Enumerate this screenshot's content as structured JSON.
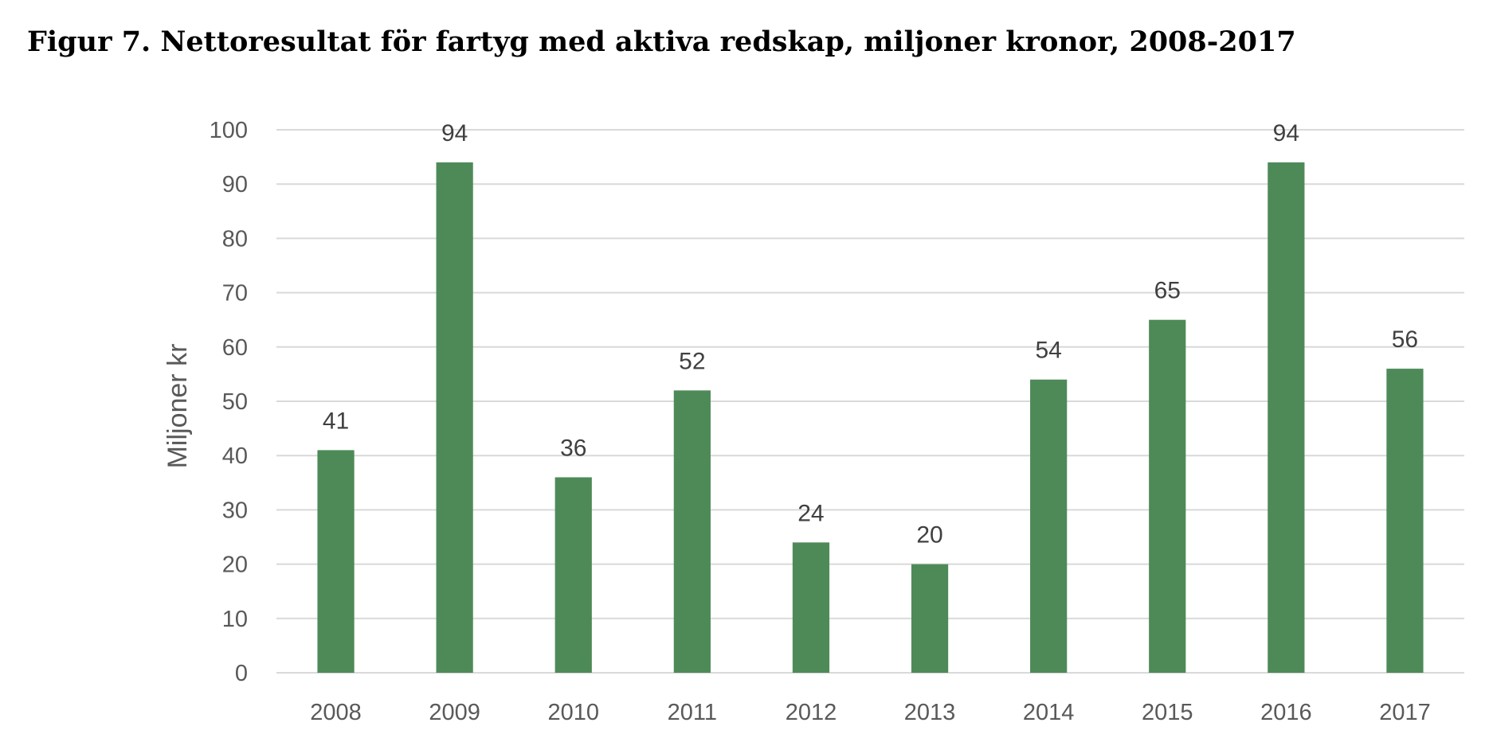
{
  "figure": {
    "title": "Figur 7. Nettoresultat för fartyg med aktiva redskap, miljoner kronor, 2008-2017"
  },
  "colors": {
    "bar": "#4e8a58",
    "grid": "#d9d9d9",
    "text": "#595959"
  },
  "chart_data": {
    "type": "bar",
    "categories": [
      "2008",
      "2009",
      "2010",
      "2011",
      "2012",
      "2013",
      "2014",
      "2015",
      "2016",
      "2017"
    ],
    "values": [
      41,
      94,
      36,
      52,
      24,
      20,
      54,
      65,
      94,
      56
    ],
    "data_labels": [
      "41",
      "94",
      "36",
      "52",
      "24",
      "20",
      "54",
      "65",
      "94",
      "56"
    ],
    "title": "Figur 7. Nettoresultat för fartyg med aktiva redskap, miljoner kronor, 2008-2017",
    "xlabel": "",
    "ylabel": "Miljoner kr",
    "ylim": [
      0,
      100
    ],
    "yticks": [
      0,
      10,
      20,
      30,
      40,
      50,
      60,
      70,
      80,
      90,
      100
    ],
    "grid": true,
    "legend": "none"
  }
}
